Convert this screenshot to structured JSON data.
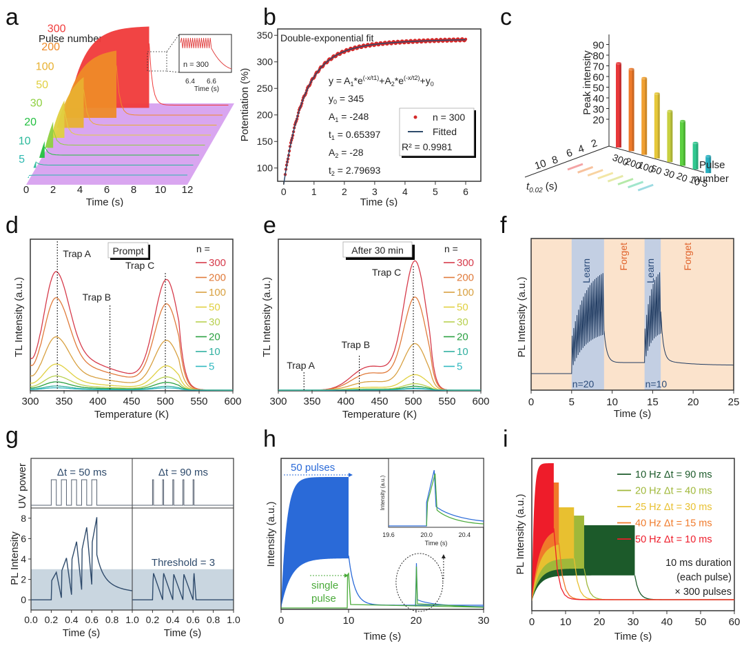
{
  "chart_data": [
    {
      "id": "a",
      "panel_label": "a",
      "type": "area",
      "title": "Pulse number",
      "xlabel": "Time (s)",
      "xticks": [
        "0",
        "2",
        "4",
        "6",
        "8",
        "10",
        "12"
      ],
      "xlim": [
        0,
        12
      ],
      "series": [
        {
          "name": "5",
          "color": "#2bb8b0",
          "pulse_end_s": 0.1
        },
        {
          "name": "10",
          "color": "#28b89a",
          "pulse_end_s": 0.2
        },
        {
          "name": "20",
          "color": "#22c040",
          "pulse_end_s": 0.4
        },
        {
          "name": "30",
          "color": "#8ed040",
          "pulse_end_s": 0.6
        },
        {
          "name": "50",
          "color": "#e0d040",
          "pulse_end_s": 1.0
        },
        {
          "name": "100",
          "color": "#e8b030",
          "pulse_end_s": 2.0
        },
        {
          "name": "200",
          "color": "#ee8a28",
          "pulse_end_s": 4.0
        },
        {
          "name": "300",
          "color": "#f03a3a",
          "pulse_end_s": 6.0
        }
      ],
      "inset": {
        "label": "n = 300",
        "xlabel": "Time (s)",
        "xticks": [
          "6.4",
          "6.6"
        ]
      }
    },
    {
      "id": "b",
      "panel_label": "b",
      "type": "scatter",
      "title": "Double-exponential fit",
      "xlabel": "Time (s)",
      "ylabel": "Potentiation (%)",
      "xlim": [
        -0.2,
        6.5
      ],
      "ylim": [
        75,
        362
      ],
      "xticks": [
        "0",
        "1",
        "2",
        "3",
        "4",
        "5",
        "6"
      ],
      "yticks": [
        "100",
        "150",
        "200",
        "250",
        "300",
        "350"
      ],
      "fit": {
        "y0": 345,
        "A1": -248,
        "t1": 0.65397,
        "A2": -28,
        "t2": 2.79693
      },
      "equation": "y = A1*e^(-x/t1)+A2*e^(-x/t2)+y0",
      "param_lines": [
        "y0 = 345",
        "A1 = -248",
        "t1 = 0.65397",
        "A2 = -28",
        "t2 = 2.79693"
      ],
      "legend": [
        {
          "name": "n = 300",
          "color": "#d42a2a",
          "marker": "dot"
        },
        {
          "name": "Fitted",
          "color": "#2e4a6b",
          "marker": "line"
        }
      ],
      "r2_label": "R² = 0.9981"
    },
    {
      "id": "c",
      "panel_label": "c",
      "type": "bar",
      "ylabel": "Peak intensity",
      "xlabel": "Pulse number",
      "zlabel": "t0.02 (s)",
      "yticks": [
        "20",
        "30",
        "40",
        "50",
        "60",
        "70",
        "80",
        "90"
      ],
      "ztick_labels": [
        "10",
        "8",
        "6",
        "4",
        "2"
      ],
      "categories": [
        "300",
        "200",
        "100",
        "50",
        "30",
        "20",
        "10",
        "5"
      ],
      "values": [
        79,
        77,
        72,
        61,
        48,
        42,
        25,
        16
      ],
      "colors": [
        "#e8383a",
        "#ee7a2a",
        "#f0a030",
        "#e6c83a",
        "#c8d040",
        "#5cd040",
        "#30c890",
        "#28b0c0"
      ]
    },
    {
      "id": "d",
      "panel_label": "d",
      "type": "line",
      "title": "Prompt",
      "xlabel": "Temperature (K)",
      "ylabel": "TL Intensity (a.u.)",
      "xlim": [
        300,
        600
      ],
      "xticks": [
        "300",
        "350",
        "400",
        "450",
        "500",
        "550",
        "600"
      ],
      "annotations": [
        {
          "text": "Trap A",
          "x": 340
        },
        {
          "text": "Trap B",
          "x": 418
        },
        {
          "text": "Trap C",
          "x": 500
        }
      ],
      "legend_title": "n =",
      "series": [
        {
          "name": "300",
          "color": "#d63a4a",
          "scale": 1.0
        },
        {
          "name": "200",
          "color": "#e07a3a",
          "scale": 0.78
        },
        {
          "name": "100",
          "color": "#d8a040",
          "scale": 0.45
        },
        {
          "name": "50",
          "color": "#e0d040",
          "scale": 0.22
        },
        {
          "name": "30",
          "color": "#b8d050",
          "scale": 0.12
        },
        {
          "name": "20",
          "color": "#2aa040",
          "scale": 0.07
        },
        {
          "name": "10",
          "color": "#30b0a0",
          "scale": 0.035
        },
        {
          "name": "5",
          "color": "#30b8c0",
          "scale": 0.02
        }
      ]
    },
    {
      "id": "e",
      "panel_label": "e",
      "type": "line",
      "title": "After 30 min",
      "xlabel": "Temperature (K)",
      "ylabel": "TL Intensity (a.u.)",
      "xlim": [
        300,
        600
      ],
      "xticks": [
        "300",
        "350",
        "400",
        "450",
        "500",
        "550",
        "600"
      ],
      "annotations": [
        {
          "text": "Trap A",
          "x": 338
        },
        {
          "text": "Trap B",
          "x": 420
        },
        {
          "text": "Trap C",
          "x": 500
        }
      ],
      "legend_title": "n =",
      "series": [
        {
          "name": "300",
          "color": "#d63a4a",
          "scale": 1.0
        },
        {
          "name": "200",
          "color": "#e07a3a",
          "scale": 0.72
        },
        {
          "name": "100",
          "color": "#d8a040",
          "scale": 0.36
        },
        {
          "name": "50",
          "color": "#e0d040",
          "scale": 0.12
        },
        {
          "name": "30",
          "color": "#b8d050",
          "scale": 0.05
        },
        {
          "name": "20",
          "color": "#2aa040",
          "scale": 0.03
        },
        {
          "name": "10",
          "color": "#30b0a0",
          "scale": 0.015
        },
        {
          "name": "5",
          "color": "#30b8c0",
          "scale": 0.01
        }
      ]
    },
    {
      "id": "f",
      "panel_label": "f",
      "type": "line",
      "xlabel": "Time (s)",
      "ylabel": "PL Intensity (a.u.)",
      "xlim": [
        0,
        25
      ],
      "xticks": [
        "0",
        "5",
        "10",
        "15",
        "20",
        "25"
      ],
      "regions": [
        {
          "label": "Learn",
          "start": 5,
          "end": 9,
          "n_label": "n=20",
          "kind": "learn",
          "pulses": 20
        },
        {
          "label": "Forget",
          "start": 9,
          "end": 14,
          "kind": "forget"
        },
        {
          "label": "Learn",
          "start": 14,
          "end": 16,
          "n_label": "n=10",
          "kind": "learn",
          "pulses": 10
        },
        {
          "label": "Forget",
          "start": 16,
          "end": 25,
          "kind": "forget"
        }
      ],
      "colors": {
        "learn_bg": "#c3cfe3",
        "forget_bg": "#fbe3cc",
        "line": "#1f3a60",
        "forget_text": "#e0622a",
        "learn_text": "#2a4a78"
      }
    },
    {
      "id": "g",
      "panel_label": "g",
      "type": "line",
      "top_ylabel": "UV power",
      "ylabel": "PL Intensity",
      "xlabel": "Time (s)",
      "ylim": [
        -1,
        9
      ],
      "yticks": [
        "0",
        "2",
        "4",
        "6",
        "8"
      ],
      "xticks": [
        "0.0",
        "0.2",
        "0.4",
        "0.6",
        "0.8",
        "1.0"
      ],
      "threshold": 3,
      "threshold_label": "Threshold = 3",
      "subplots": [
        {
          "label": "Δt = 50 ms",
          "pulse_starts": [
            0.2,
            0.3,
            0.4,
            0.5,
            0.6
          ],
          "pulse_width": 0.05,
          "peaks": [
            2.7,
            4.1,
            5.7,
            7.1,
            8.1
          ]
        },
        {
          "label": "Δt = 90 ms",
          "pulse_starts": [
            0.2,
            0.3,
            0.4,
            0.5,
            0.6
          ],
          "pulse_width": 0.01,
          "peaks": [
            2.6,
            2.6,
            2.5,
            2.5,
            2.6
          ]
        }
      ]
    },
    {
      "id": "h",
      "panel_label": "h",
      "type": "line",
      "xlabel": "Time (s)",
      "ylabel": "Intensity (a.u.)",
      "xlim": [
        0,
        30
      ],
      "xticks": [
        "0",
        "10",
        "20",
        "30"
      ],
      "annotations": [
        "50 pulses",
        "single",
        "pulse"
      ],
      "series": [
        {
          "name": "50 pulses",
          "color": "#2a6ad8"
        },
        {
          "name": "single pulse",
          "color": "#4aaa3a"
        }
      ],
      "inset": {
        "xlabel": "Time (s)",
        "ylabel": "Intensity (a.u.)",
        "xticks": [
          "19.6",
          "20.0",
          "20.4"
        ],
        "xlim": [
          19.6,
          20.6
        ]
      }
    },
    {
      "id": "i",
      "panel_label": "i",
      "type": "area",
      "xlabel": "Time (s)",
      "ylabel": "PL Intensity (a.u.)",
      "xlim": [
        0,
        60
      ],
      "xticks": [
        "0",
        "10",
        "20",
        "30",
        "40",
        "50",
        "60"
      ],
      "series": [
        {
          "name": "10 Hz Δt = 90 ms",
          "color": "#1c5a2a",
          "end_s": 30.5,
          "top": 0.55,
          "bottom": 0.3
        },
        {
          "name": "20 Hz Δt = 40 ms",
          "color": "#a0b83a",
          "end_s": 15.5,
          "top": 0.62,
          "bottom": 0.38
        },
        {
          "name": "25 Hz Δt = 30 ms",
          "color": "#e8c030",
          "end_s": 12.5,
          "top": 0.68,
          "bottom": 0.5
        },
        {
          "name": "40 Hz Δt = 15 ms",
          "color": "#f07a2a",
          "end_s": 8.0,
          "top": 0.86,
          "bottom": 0.68
        },
        {
          "name": "50 Hz Δt = 10 ms",
          "color": "#ee1c2a",
          "end_s": 6.5,
          "top": 1.0,
          "bottom": 0.85
        }
      ],
      "note_lines": [
        "10 ms duration",
        "(each pulse)",
        "× 300 pulses"
      ]
    }
  ]
}
